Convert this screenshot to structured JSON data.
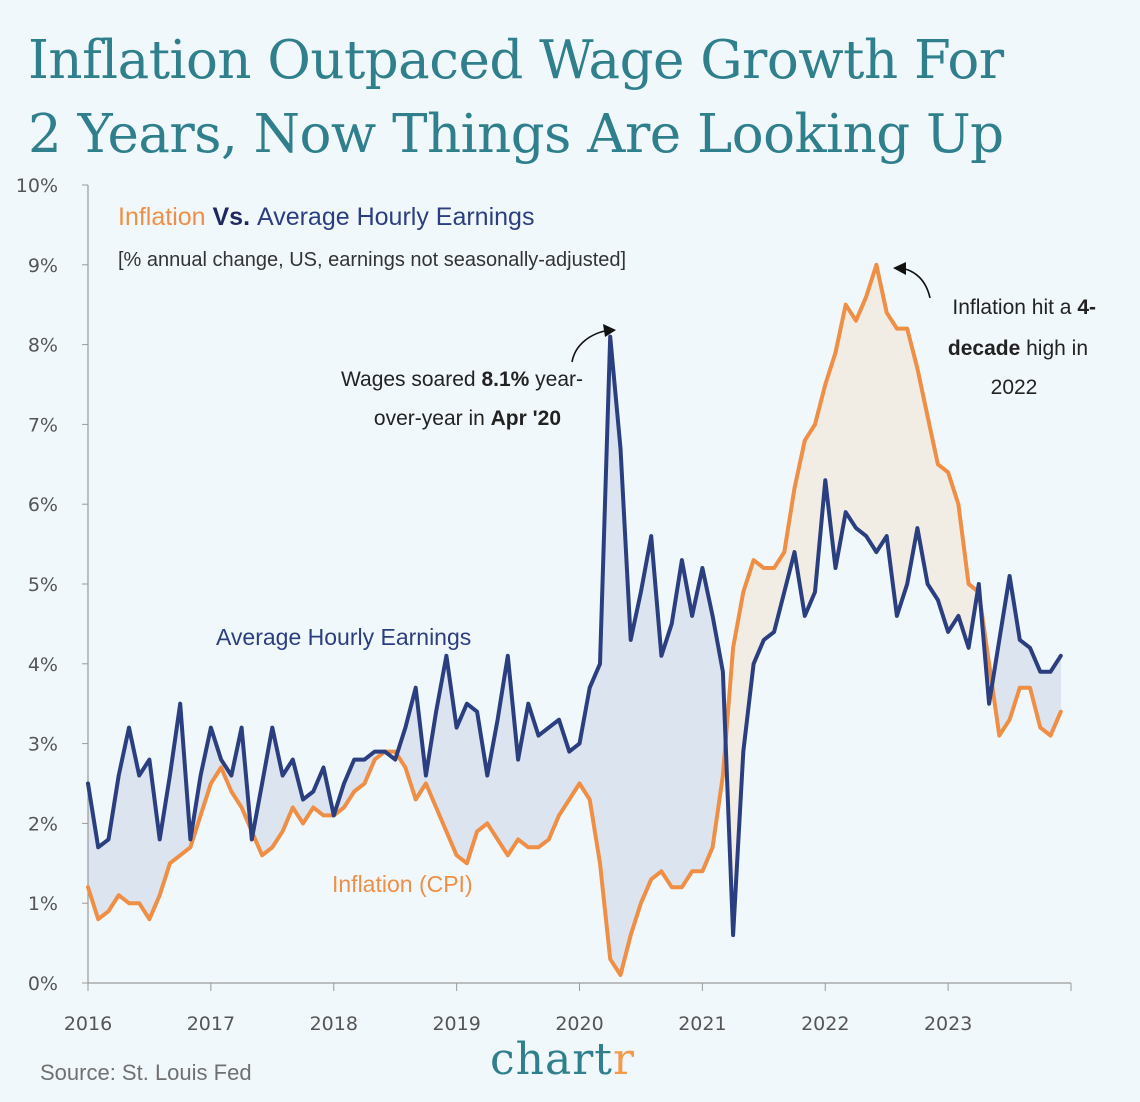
{
  "headline": {
    "line1": "Inflation Outpaced Wage Growth For",
    "line2": "2 Years, Now Things Are Looking Up"
  },
  "source": "Source: St. Louis Fed",
  "logo": {
    "main": "chart",
    "accent_letter": "r"
  },
  "colors": {
    "inflation": "#ef8f45",
    "earnings": "#2b3f80",
    "wage_fill": "#dbe4ef",
    "inflation_fill": "#f1ece4",
    "accent": "#2f7f8c"
  },
  "chart_data": {
    "type": "line",
    "title": {
      "part1": "Inflation",
      "part2": " Vs. ",
      "part3": "Average Hourly Earnings"
    },
    "subtitle": "[% annual change, US, earnings not seasonally-adjusted]",
    "x_ticks": [
      "2016",
      "2017",
      "2018",
      "2019",
      "2020",
      "2021",
      "2022",
      "2023"
    ],
    "y_ticks": [
      "0%",
      "1%",
      "2%",
      "3%",
      "4%",
      "5%",
      "6%",
      "7%",
      "8%",
      "9%",
      "10%"
    ],
    "ylim": [
      0,
      10
    ],
    "xlim": [
      "2016-01",
      "2024-01"
    ],
    "x": [
      "2016-01",
      "2016-02",
      "2016-03",
      "2016-04",
      "2016-05",
      "2016-06",
      "2016-07",
      "2016-08",
      "2016-09",
      "2016-10",
      "2016-11",
      "2016-12",
      "2017-01",
      "2017-02",
      "2017-03",
      "2017-04",
      "2017-05",
      "2017-06",
      "2017-07",
      "2017-08",
      "2017-09",
      "2017-10",
      "2017-11",
      "2017-12",
      "2018-01",
      "2018-02",
      "2018-03",
      "2018-04",
      "2018-05",
      "2018-06",
      "2018-07",
      "2018-08",
      "2018-09",
      "2018-10",
      "2018-11",
      "2018-12",
      "2019-01",
      "2019-02",
      "2019-03",
      "2019-04",
      "2019-05",
      "2019-06",
      "2019-07",
      "2019-08",
      "2019-09",
      "2019-10",
      "2019-11",
      "2019-12",
      "2020-01",
      "2020-02",
      "2020-03",
      "2020-04",
      "2020-05",
      "2020-06",
      "2020-07",
      "2020-08",
      "2020-09",
      "2020-10",
      "2020-11",
      "2020-12",
      "2021-01",
      "2021-02",
      "2021-03",
      "2021-04",
      "2021-05",
      "2021-06",
      "2021-07",
      "2021-08",
      "2021-09",
      "2021-10",
      "2021-11",
      "2021-12",
      "2022-01",
      "2022-02",
      "2022-03",
      "2022-04",
      "2022-05",
      "2022-06",
      "2022-07",
      "2022-08",
      "2022-09",
      "2022-10",
      "2022-11",
      "2022-12",
      "2023-01",
      "2023-02",
      "2023-03",
      "2023-04",
      "2023-05",
      "2023-06",
      "2023-07",
      "2023-08",
      "2023-09",
      "2023-10",
      "2023-11",
      "2023-12"
    ],
    "series": [
      {
        "name": "Average Hourly Earnings",
        "values": [
          2.5,
          1.7,
          1.8,
          2.6,
          3.2,
          2.6,
          2.8,
          1.8,
          2.6,
          3.5,
          1.8,
          2.6,
          3.2,
          2.8,
          2.6,
          3.2,
          1.8,
          2.5,
          3.2,
          2.6,
          2.8,
          2.3,
          2.4,
          2.7,
          2.1,
          2.5,
          2.8,
          2.8,
          2.9,
          2.9,
          2.8,
          3.2,
          3.7,
          2.6,
          3.4,
          4.1,
          3.2,
          3.5,
          3.4,
          2.6,
          3.3,
          4.1,
          2.8,
          3.5,
          3.1,
          3.2,
          3.3,
          2.9,
          3.0,
          3.7,
          4.0,
          8.1,
          6.7,
          4.3,
          4.9,
          5.6,
          4.1,
          4.5,
          5.3,
          4.6,
          5.2,
          4.6,
          3.9,
          0.6,
          2.9,
          4.0,
          4.3,
          4.4,
          4.9,
          5.4,
          4.6,
          4.9,
          6.3,
          5.2,
          5.9,
          5.7,
          5.6,
          5.4,
          5.6,
          4.6,
          5.0,
          5.7,
          5.0,
          4.8,
          4.4,
          4.6,
          4.2,
          5.0,
          3.5,
          4.3,
          5.1,
          4.3,
          4.2,
          3.9,
          3.9,
          4.1
        ]
      },
      {
        "name": "Inflation (CPI)",
        "values": [
          1.2,
          0.8,
          0.9,
          1.1,
          1.0,
          1.0,
          0.8,
          1.1,
          1.5,
          1.6,
          1.7,
          2.1,
          2.5,
          2.7,
          2.4,
          2.2,
          1.9,
          1.6,
          1.7,
          1.9,
          2.2,
          2.0,
          2.2,
          2.1,
          2.1,
          2.2,
          2.4,
          2.5,
          2.8,
          2.9,
          2.9,
          2.7,
          2.3,
          2.5,
          2.2,
          1.9,
          1.6,
          1.5,
          1.9,
          2.0,
          1.8,
          1.6,
          1.8,
          1.7,
          1.7,
          1.8,
          2.1,
          2.3,
          2.5,
          2.3,
          1.5,
          0.3,
          0.1,
          0.6,
          1.0,
          1.3,
          1.4,
          1.2,
          1.2,
          1.4,
          1.4,
          1.7,
          2.6,
          4.2,
          4.9,
          5.3,
          5.2,
          5.2,
          5.4,
          6.2,
          6.8,
          7.0,
          7.5,
          7.9,
          8.5,
          8.3,
          8.6,
          9.0,
          8.4,
          8.2,
          8.2,
          7.7,
          7.1,
          6.5,
          6.4,
          6.0,
          5.0,
          4.9,
          4.0,
          3.1,
          3.3,
          3.7,
          3.7,
          3.2,
          3.1,
          3.4
        ]
      }
    ],
    "series_labels": {
      "earnings": "Average Hourly Earnings",
      "inflation": "Inflation (CPI)"
    },
    "annotations": {
      "wages": {
        "line1_a": "Wages soared ",
        "line1_b": "8.1%",
        "line1_c": " year-",
        "line2_a": "over-year in ",
        "line2_b": "Apr '20"
      },
      "inflation": {
        "line1_a": "Inflation hit a ",
        "line1_b": "4-",
        "line2_a": "decade",
        "line2_b": " high in",
        "line3": "2022"
      }
    },
    "grid": false
  }
}
